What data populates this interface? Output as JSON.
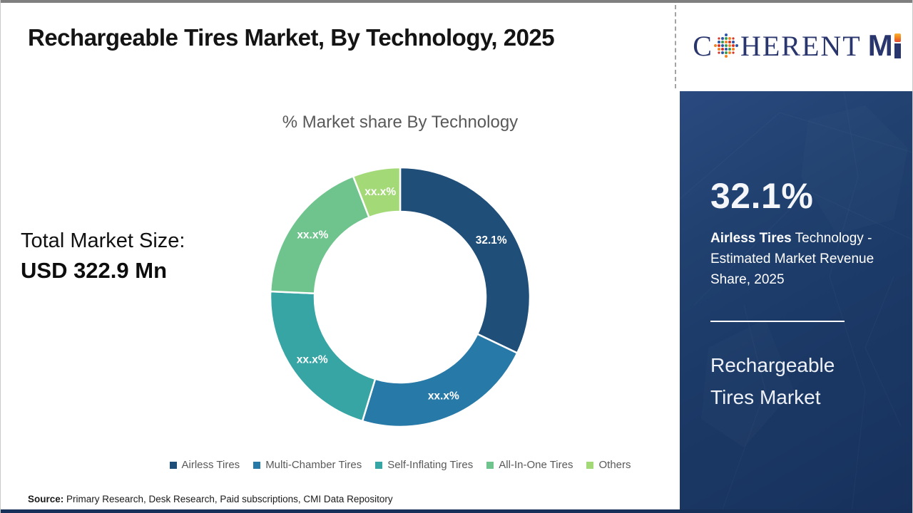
{
  "page": {
    "title": "Rechargeable Tires Market, By Technology, 2025",
    "source_label": "Source:",
    "source_text": " Primary Research, Desk Research, Paid subscriptions, CMI Data Repository"
  },
  "left_stat": {
    "label": "Total Market Size:",
    "value": "USD 322.9 Mn"
  },
  "chart_data": {
    "type": "pie",
    "subtype": "donut",
    "title": "% Market share By Technology",
    "categories": [
      "Airless Tires",
      "Multi-Chamber Tires",
      "Self-Inflating Tires",
      "All-In-One Tires",
      "Others"
    ],
    "values": [
      32.1,
      22.6,
      21.0,
      18.4,
      5.9
    ],
    "slice_labels": [
      "32.1%",
      "xx.x%",
      "xx.x%",
      "xx.x%",
      "xx.x%"
    ],
    "colors": [
      "#1f4e79",
      "#2779a7",
      "#38a5a5",
      "#6ec48c",
      "#a3d977"
    ],
    "legend_position": "bottom",
    "start_angle_deg": 0,
    "direction": "clockwise",
    "inner_radius_ratio": 0.66,
    "label_color": "#ffffff"
  },
  "sidebar": {
    "stat_value": "32.1%",
    "desc_bold": "Airless Tires",
    "desc_rest": " Technology - Estimated Market Revenue Share, 2025",
    "market_name": "Rechargeable Tires Market",
    "bg_color": "#1e3c6b"
  },
  "logo": {
    "part_c": "C",
    "part_herent": "HERENT",
    "part_m": "M",
    "navy": "#29356d",
    "orange": "#f07d1b",
    "globe_colors": [
      "#3a9b4f",
      "#2b55a5",
      "#d93025",
      "#f58220"
    ]
  }
}
